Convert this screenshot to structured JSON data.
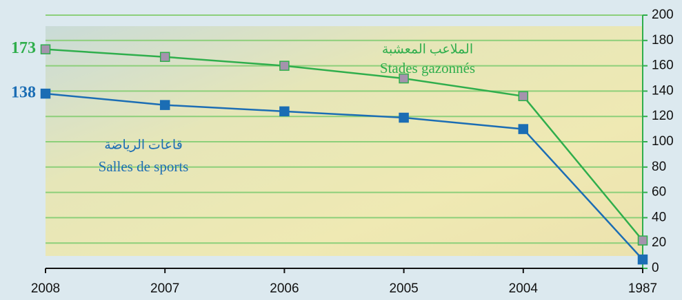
{
  "chart_data": {
    "type": "line",
    "categories": [
      "2008",
      "2007",
      "2006",
      "2005",
      "2004",
      "1987"
    ],
    "series": [
      {
        "name": "Salles de sports",
        "label_ar": "قاعات الرياضة",
        "color": "#1b6db4",
        "marker_fill": "#1b6db4",
        "values": [
          138,
          129,
          124,
          119,
          110,
          7
        ]
      },
      {
        "name": "Stades gazonnés",
        "label_ar": "الملاعب المعشبة",
        "color": "#2fae4c",
        "marker_fill": "#a493ad",
        "values": [
          173,
          167,
          160,
          150,
          136,
          22
        ]
      }
    ],
    "ylim": [
      0,
      200
    ],
    "yticks": [
      0,
      20,
      40,
      60,
      80,
      100,
      120,
      140,
      160,
      180,
      200
    ],
    "grid": true
  }
}
